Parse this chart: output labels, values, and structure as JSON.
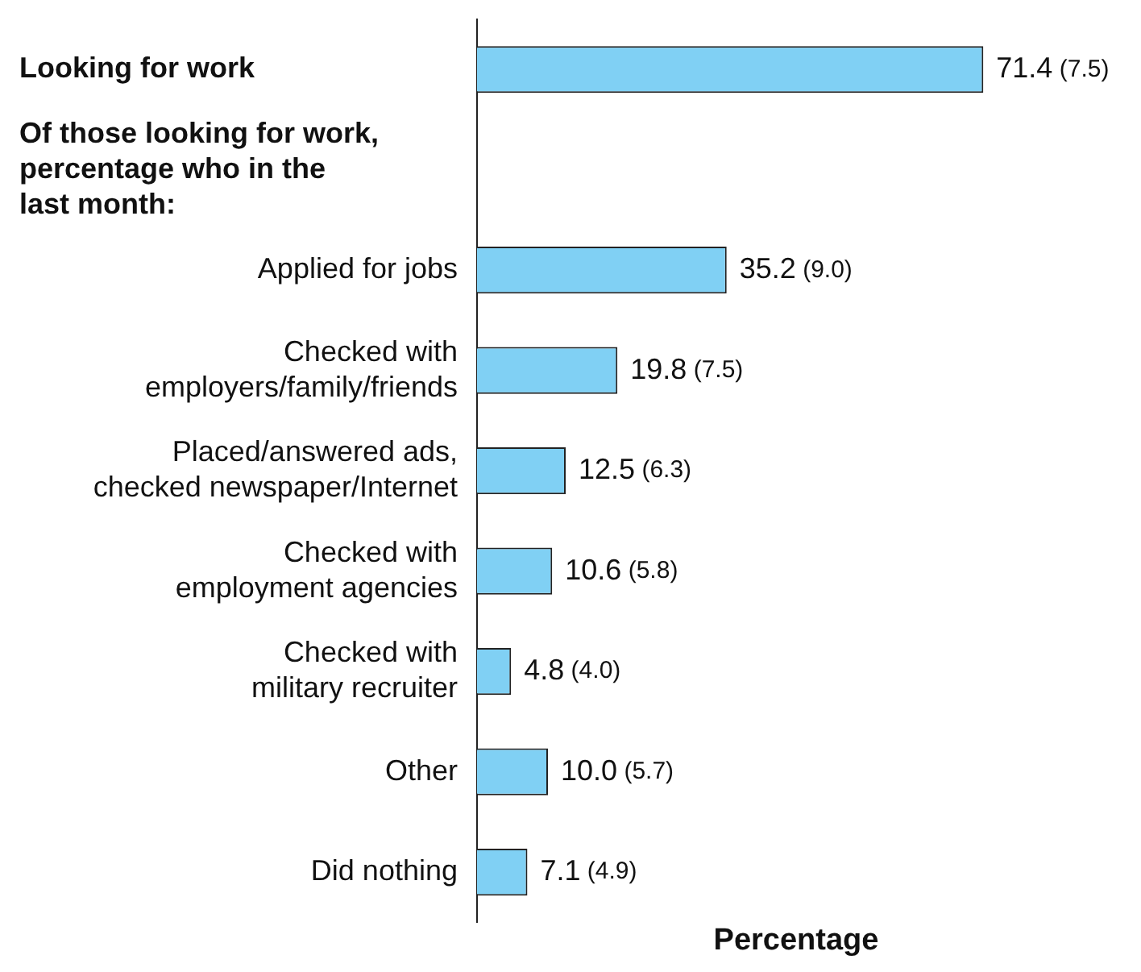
{
  "chart_data": {
    "type": "bar",
    "orientation": "horizontal",
    "categories": [
      null,
      null,
      "Applied for jobs",
      "Checked with\nemployers/family/friends",
      "Placed/answered ads,\nchecked newspaper/Internet",
      "Checked with\nemployment agencies",
      "Checked with\nmilitary recruiter",
      "Other",
      "Did nothing"
    ],
    "values": [
      71.4,
      null,
      35.2,
      19.8,
      12.5,
      10.6,
      4.8,
      10.0,
      7.1
    ],
    "value_labels": [
      "71.4 (7.5)",
      null,
      "35.2 (9.0)",
      "19.8 (7.5)",
      "12.5 (6.3)",
      "10.6 (5.8)",
      "4.8 (4.0)",
      "10.0 (5.7)",
      "7.1 (4.9)"
    ],
    "color": "#80d0f4",
    "xlabel": "Percentage",
    "annotations": [
      "Looking for work",
      "Of those looking for work,\npercentage who in the\nlast month:"
    ],
    "tick_labels": "y",
    "grid": false,
    "legend": false
  }
}
